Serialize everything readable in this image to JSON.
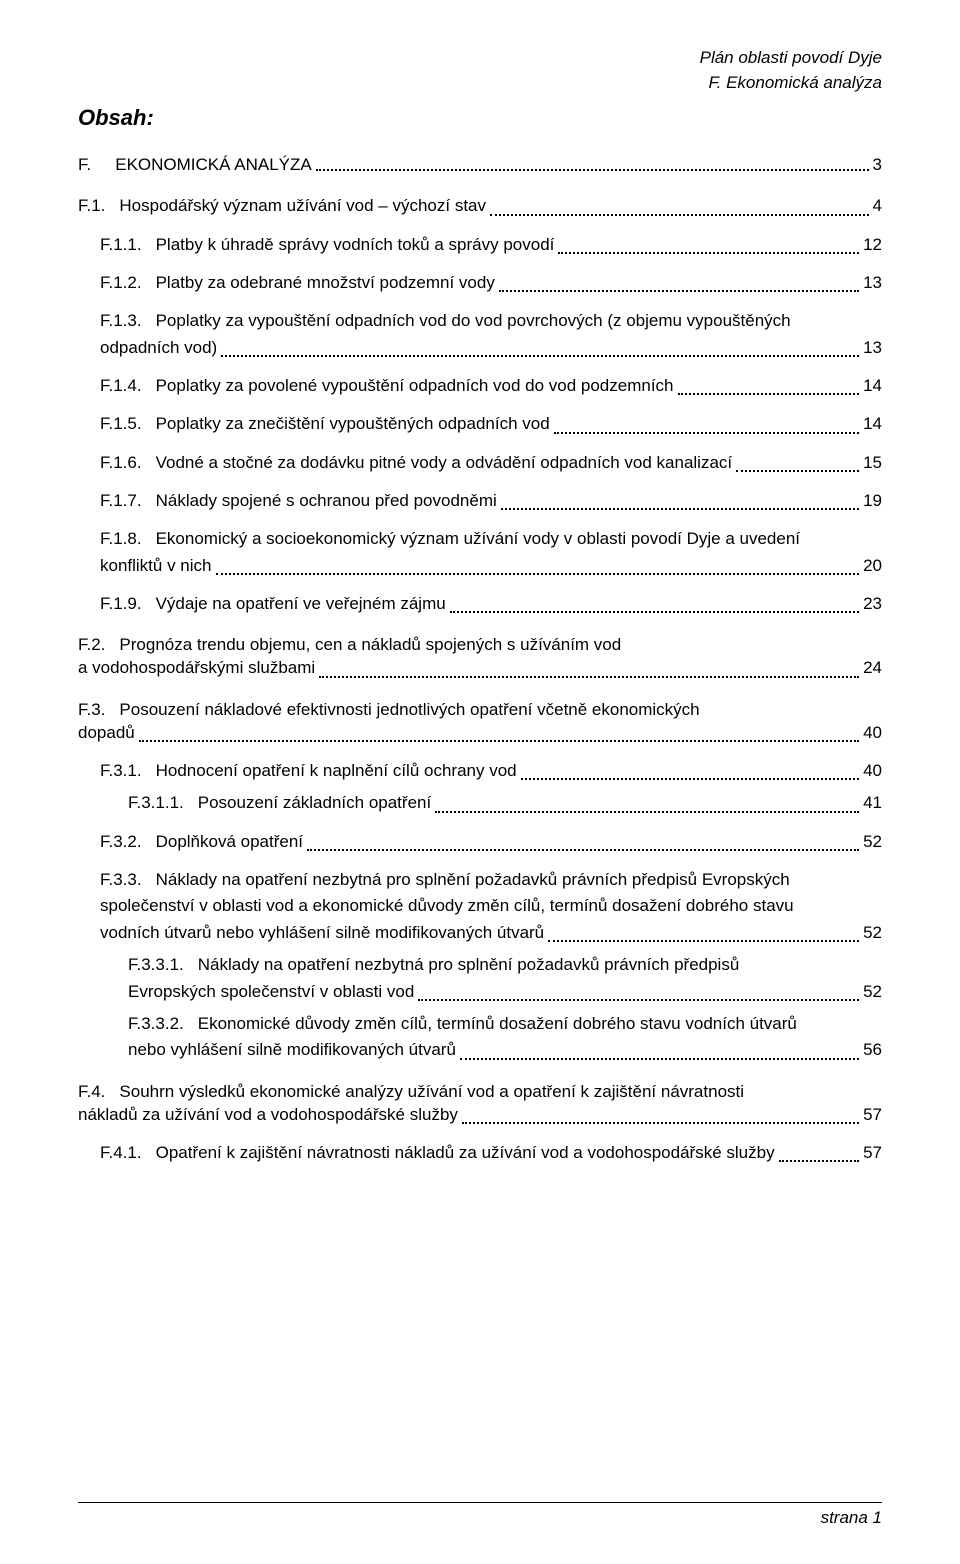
{
  "header": {
    "line1": "Plán oblasti povodí Dyje",
    "line2": "F. Ekonomická analýza"
  },
  "obsah_label": "Obsah:",
  "top": {
    "num": "F.",
    "title": "EKONOMICKÁ ANALÝZA",
    "page": "3"
  },
  "toc": [
    {
      "level": 1,
      "multi": false,
      "num": "F.1.",
      "text": "Hospodářský význam užívání vod – výchozí stav",
      "page": "4"
    },
    {
      "level": 2,
      "multi": false,
      "num": "F.1.1.",
      "text": "Platby k úhradě správy vodních toků a správy povodí",
      "page": "12"
    },
    {
      "level": 2,
      "multi": false,
      "num": "F.1.2.",
      "text": "Platby za odebrané množství podzemní vody",
      "page": "13"
    },
    {
      "level": 2,
      "multi": true,
      "num": "F.1.3.",
      "pre": "Poplatky za vypouštění odpadních vod do vod povrchových (z objemu vypouštěných",
      "last": "odpadních vod)",
      "page": "13"
    },
    {
      "level": 2,
      "multi": false,
      "num": "F.1.4.",
      "text": "Poplatky za povolené vypouštění odpadních vod do vod podzemních",
      "page": "14"
    },
    {
      "level": 2,
      "multi": false,
      "num": "F.1.5.",
      "text": "Poplatky za znečištění vypouštěných odpadních vod",
      "page": "14"
    },
    {
      "level": 2,
      "multi": false,
      "num": "F.1.6.",
      "text": "Vodné a stočné za dodávku pitné vody a odvádění odpadních vod kanalizací",
      "page": "15"
    },
    {
      "level": 2,
      "multi": false,
      "num": "F.1.7.",
      "text": "Náklady spojené s ochranou před povodněmi",
      "page": "19"
    },
    {
      "level": 2,
      "multi": true,
      "num": "F.1.8.",
      "pre": "Ekonomický a socioekonomický význam užívání vody v oblasti povodí Dyje a uvedení",
      "last": "konfliktů v nich",
      "page": "20"
    },
    {
      "level": 2,
      "multi": false,
      "num": "F.1.9.",
      "text": "Výdaje na opatření ve veřejném zájmu",
      "page": "23"
    },
    {
      "level": 1,
      "multi": true,
      "num": "F.2.",
      "pre": "Prognóza trendu objemu, cen a nákladů spojených s užíváním vod",
      "last": "a vodohospodářskými službami",
      "page": "24"
    },
    {
      "level": 1,
      "multi": true,
      "num": "F.3.",
      "pre": "Posouzení nákladové efektivnosti jednotlivých opatření včetně ekonomických",
      "last": "dopadů",
      "page": "40"
    },
    {
      "level": 2,
      "multi": false,
      "num": "F.3.1.",
      "text": "Hodnocení opatření k naplnění cílů ochrany vod",
      "page": "40"
    },
    {
      "level": 3,
      "multi": false,
      "num": "F.3.1.1.",
      "text": "Posouzení základních opatření",
      "page": "41"
    },
    {
      "level": 2,
      "multi": false,
      "num": "F.3.2.",
      "text": "Doplňková opatření",
      "page": "52"
    },
    {
      "level": 2,
      "multi": true,
      "num": "F.3.3.",
      "pre": "Náklady na opatření nezbytná pro splnění požadavků právních předpisů Evropských",
      "mid": "společenství v oblasti vod a ekonomické důvody změn cílů, termínů dosažení dobrého stavu",
      "last": "vodních útvarů nebo vyhlášení silně modifikovaných útvarů",
      "page": "52"
    },
    {
      "level": 3,
      "multi": true,
      "num": "F.3.3.1.",
      "pre": "Náklady na opatření nezbytná pro splnění požadavků právních předpisů",
      "last": "Evropských společenství v oblasti vod",
      "page": "52"
    },
    {
      "level": 3,
      "multi": true,
      "num": "F.3.3.2.",
      "pre": "Ekonomické důvody změn cílů, termínů dosažení dobrého stavu vodních útvarů",
      "last": "nebo vyhlášení silně modifikovaných útvarů",
      "page": "56"
    },
    {
      "level": 1,
      "multi": true,
      "num": "F.4.",
      "pre": "Souhrn výsledků ekonomické analýzy užívání vod a opatření k zajištění návratnosti",
      "last": "nákladů za užívání vod a vodohospodářské služby",
      "page": "57"
    },
    {
      "level": 2,
      "multi": false,
      "num": "F.4.1.",
      "text": "Opatření k zajištění návratnosti nákladů za užívání vod a vodohospodářské služby",
      "page": "57"
    }
  ],
  "footer": "strana 1"
}
